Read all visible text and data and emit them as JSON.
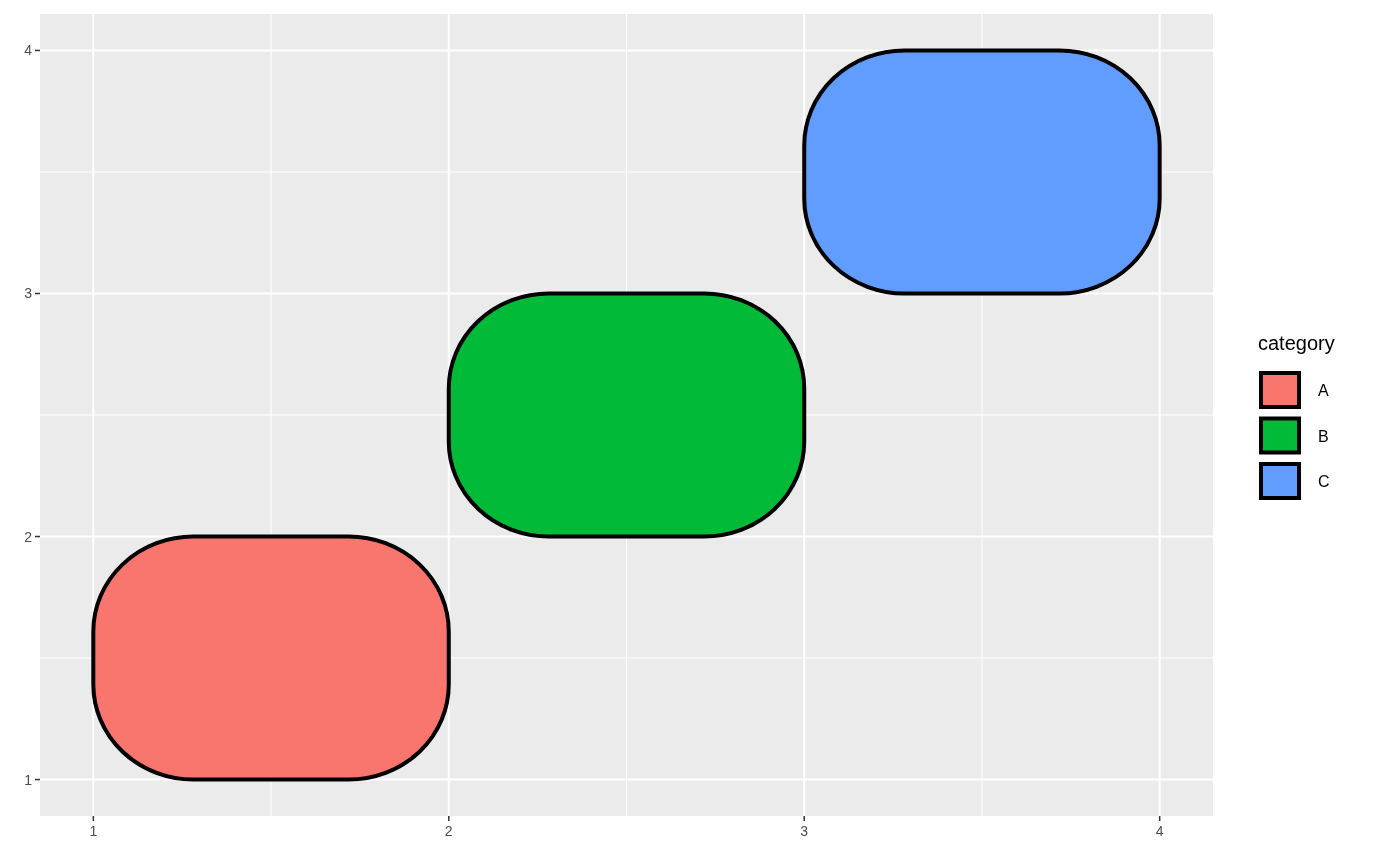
{
  "chart_data": {
    "type": "bar",
    "legend_title": "category",
    "xlim": [
      0.85,
      4.15
    ],
    "ylim": [
      0.85,
      4.15
    ],
    "xticks": [
      1,
      2,
      3,
      4
    ],
    "yticks": [
      1,
      2,
      3,
      4
    ],
    "grid": true,
    "legend": "right",
    "series": [
      {
        "name": "A",
        "color": "#f8766d",
        "x": [
          1.5
        ],
        "base": [
          1
        ],
        "values": [
          1
        ]
      },
      {
        "name": "B",
        "color": "#00ba38",
        "x": [
          2.5
        ],
        "base": [
          2
        ],
        "values": [
          1
        ]
      },
      {
        "name": "C",
        "color": "#619cff",
        "x": [
          3.5
        ],
        "base": [
          3
        ],
        "values": [
          1
        ]
      }
    ]
  }
}
